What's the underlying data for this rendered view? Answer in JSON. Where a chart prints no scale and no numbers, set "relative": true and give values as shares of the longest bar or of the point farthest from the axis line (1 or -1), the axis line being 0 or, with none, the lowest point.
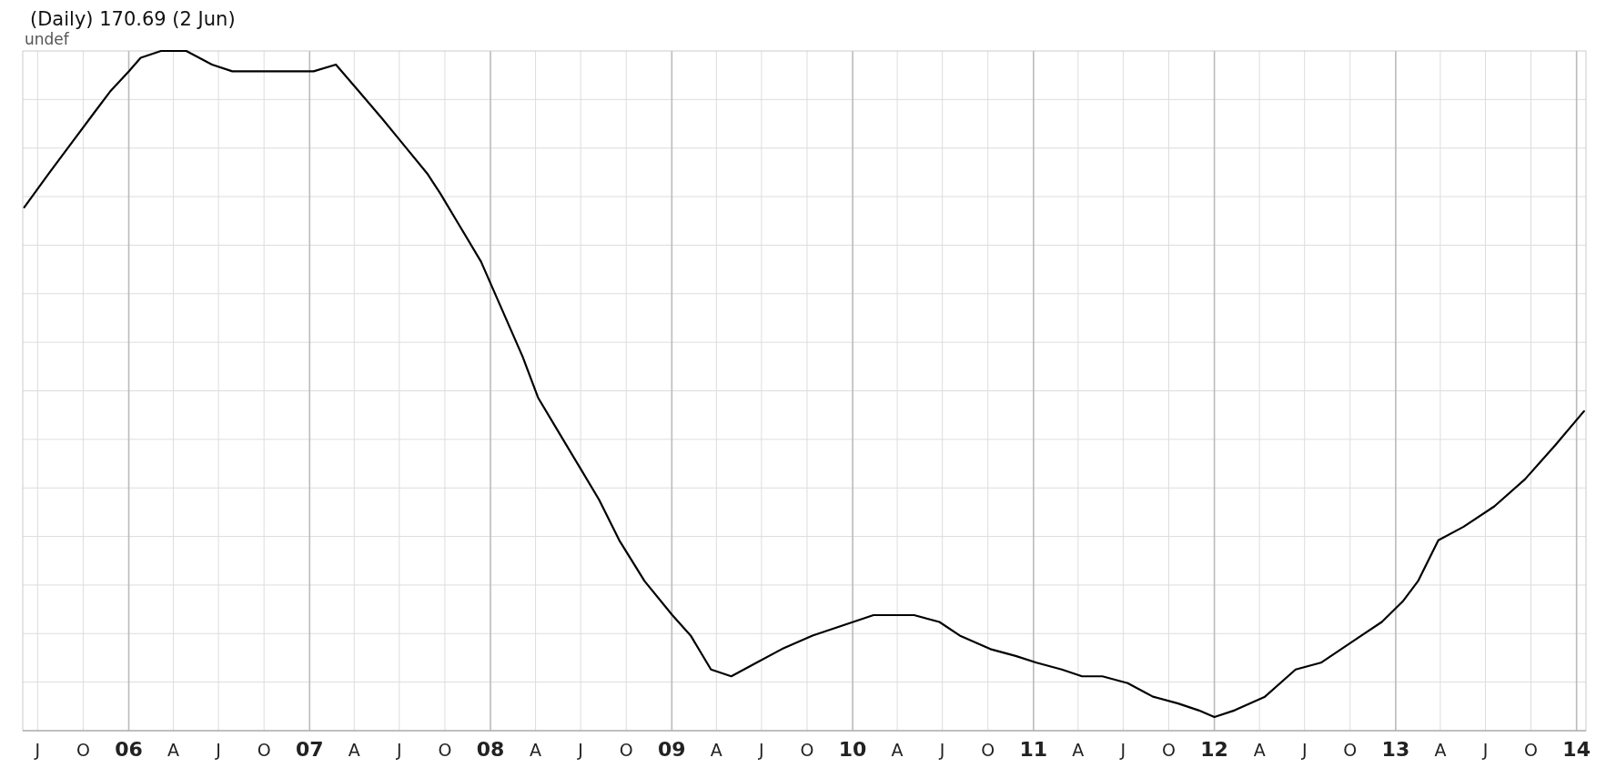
{
  "chart_data": {
    "type": "line",
    "title": "(Daily) 170.69 (2 Jun)",
    "annotations": [
      "undef"
    ],
    "relative": true,
    "grid": true,
    "xlim": [
      "2005-06-01",
      "2014-01-20"
    ],
    "xticks": [
      {
        "value": "2005-07-01",
        "label": "J"
      },
      {
        "value": "2005-10-01",
        "label": "O"
      },
      {
        "value": "2006-01-01",
        "label": "06"
      },
      {
        "value": "2006-04-01",
        "label": "A"
      },
      {
        "value": "2006-07-01",
        "label": "J"
      },
      {
        "value": "2006-10-01",
        "label": "O"
      },
      {
        "value": "2007-01-01",
        "label": "07"
      },
      {
        "value": "2007-04-01",
        "label": "A"
      },
      {
        "value": "2007-07-01",
        "label": "J"
      },
      {
        "value": "2007-10-01",
        "label": "O"
      },
      {
        "value": "2008-01-01",
        "label": "08"
      },
      {
        "value": "2008-04-01",
        "label": "A"
      },
      {
        "value": "2008-07-01",
        "label": "J"
      },
      {
        "value": "2008-10-01",
        "label": "O"
      },
      {
        "value": "2009-01-01",
        "label": "09"
      },
      {
        "value": "2009-04-01",
        "label": "A"
      },
      {
        "value": "2009-07-01",
        "label": "J"
      },
      {
        "value": "2009-10-01",
        "label": "O"
      },
      {
        "value": "2010-01-01",
        "label": "10"
      },
      {
        "value": "2010-04-01",
        "label": "A"
      },
      {
        "value": "2010-07-01",
        "label": "J"
      },
      {
        "value": "2010-10-01",
        "label": "O"
      },
      {
        "value": "2011-01-01",
        "label": "11"
      },
      {
        "value": "2011-04-01",
        "label": "A"
      },
      {
        "value": "2011-07-01",
        "label": "J"
      },
      {
        "value": "2011-10-01",
        "label": "O"
      },
      {
        "value": "2012-01-01",
        "label": "12"
      },
      {
        "value": "2012-04-01",
        "label": "A"
      },
      {
        "value": "2012-07-01",
        "label": "J"
      },
      {
        "value": "2012-10-01",
        "label": "O"
      },
      {
        "value": "2013-01-01",
        "label": "13"
      },
      {
        "value": "2013-04-01",
        "label": "A"
      },
      {
        "value": "2013-07-01",
        "label": "J"
      },
      {
        "value": "2013-10-01",
        "label": "O"
      },
      {
        "value": "2014-01-01",
        "label": "14"
      }
    ],
    "x": [
      "2005-06-04",
      "2005-07-24",
      "2005-09-13",
      "2005-10-24",
      "2005-11-24",
      "2006-01-01",
      "2006-01-25",
      "2006-03-07",
      "2006-04-27",
      "2006-06-18",
      "2006-07-29",
      "2006-09-08",
      "2006-11-04",
      "2006-12-09",
      "2007-01-09",
      "2007-02-23",
      "2007-04-11",
      "2007-05-28",
      "2007-07-12",
      "2007-08-26",
      "2007-09-22",
      "2007-11-02",
      "2007-12-13",
      "2008-01-24",
      "2008-03-06",
      "2008-04-06",
      "2008-05-17",
      "2008-06-27",
      "2008-08-07",
      "2008-09-17",
      "2008-11-07",
      "2009-01-02",
      "2009-02-08",
      "2009-03-21",
      "2009-05-01",
      "2009-06-21",
      "2009-08-11",
      "2009-10-12",
      "2009-11-22",
      "2010-01-02",
      "2010-02-12",
      "2010-03-25",
      "2010-05-05",
      "2010-06-25",
      "2010-08-05",
      "2010-10-06",
      "2010-11-26",
      "2011-01-07",
      "2011-02-27",
      "2011-04-09",
      "2011-05-20",
      "2011-07-10",
      "2011-08-30",
      "2011-10-20",
      "2011-11-30",
      "2012-01-01",
      "2012-02-11",
      "2012-04-12",
      "2012-06-13",
      "2012-08-03",
      "2012-09-13",
      "2012-10-24",
      "2012-12-04",
      "2013-01-15",
      "2013-02-15",
      "2013-03-28",
      "2013-05-18",
      "2013-07-19",
      "2013-09-19",
      "2013-11-19",
      "2014-01-16"
    ],
    "series": [
      {
        "color": "#000000",
        "values": [
          0.77,
          0.82,
          0.87,
          0.91,
          0.94,
          0.97,
          0.99,
          1.0,
          1.0,
          0.98,
          0.97,
          0.97,
          0.97,
          0.97,
          0.97,
          0.98,
          0.94,
          0.9,
          0.86,
          0.82,
          0.79,
          0.74,
          0.69,
          0.62,
          0.55,
          0.49,
          0.44,
          0.39,
          0.34,
          0.28,
          0.22,
          0.17,
          0.14,
          0.09,
          0.08,
          0.1,
          0.12,
          0.14,
          0.15,
          0.16,
          0.17,
          0.17,
          0.17,
          0.16,
          0.14,
          0.12,
          0.11,
          0.1,
          0.09,
          0.08,
          0.08,
          0.07,
          0.05,
          0.04,
          0.03,
          0.02,
          0.03,
          0.05,
          0.09,
          0.1,
          0.12,
          0.14,
          0.16,
          0.19,
          0.22,
          0.28,
          0.3,
          0.33,
          0.37,
          0.42,
          0.47
        ]
      }
    ]
  }
}
